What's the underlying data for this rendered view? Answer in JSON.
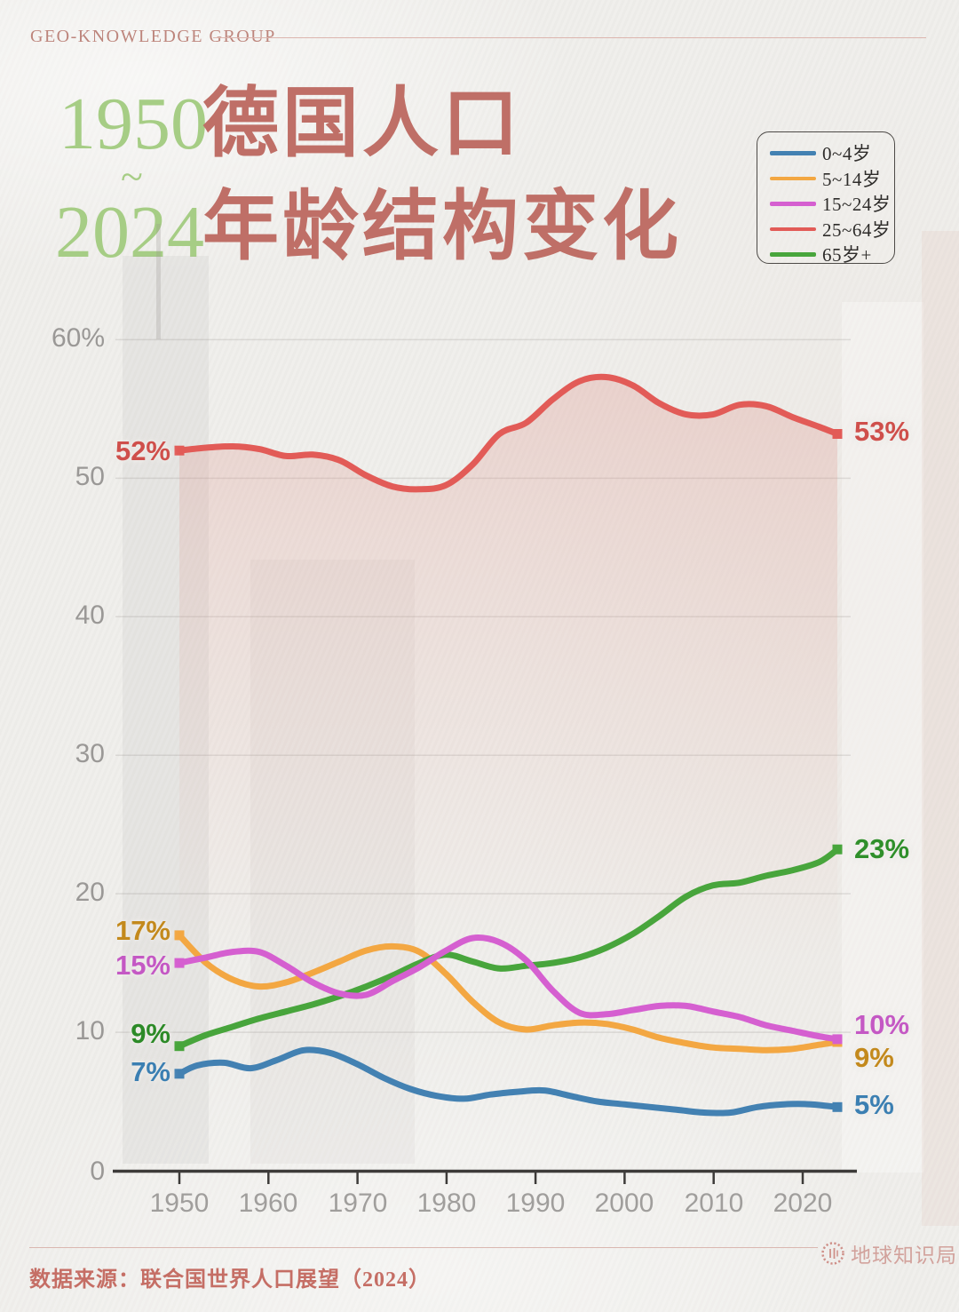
{
  "header": {
    "brand": "GEO-KNOWLEDGE GROUP"
  },
  "title": {
    "year_start": "1950",
    "tilde": "~",
    "year_end": "2024",
    "line1": "德国人口",
    "line2": "年龄结构变化",
    "year_color": "#a6cd85",
    "title_color": "#bf6f67"
  },
  "legend": {
    "items": [
      {
        "label": "0~4岁",
        "color": "#4381b2"
      },
      {
        "label": "5~14岁",
        "color": "#f3a742"
      },
      {
        "label": "15~24岁",
        "color": "#d55fd0"
      },
      {
        "label": "25~64岁",
        "color": "#e25b57"
      },
      {
        "label": "65岁+",
        "color": "#48a53c"
      }
    ]
  },
  "chart_data": {
    "type": "line",
    "title": "德国人口年龄结构变化 1950~2024",
    "xlabel": "",
    "ylabel": "",
    "xlim": [
      1950,
      2024
    ],
    "ylim": [
      0,
      60
    ],
    "grid": true,
    "legend_position": "top-right",
    "x_ticks": [
      "1950",
      "1960",
      "1970",
      "1980",
      "1990",
      "2000",
      "2010",
      "2020"
    ],
    "y_ticks": [
      "0",
      "10",
      "20",
      "30",
      "40",
      "50",
      "60%"
    ],
    "series": [
      {
        "key": "0-4",
        "name": "0~4岁",
        "color": "#4381b2",
        "area_fill": false,
        "points": [
          [
            1950,
            7.0
          ],
          [
            1952,
            7.6
          ],
          [
            1955,
            7.8
          ],
          [
            1958,
            7.4
          ],
          [
            1961,
            8.0
          ],
          [
            1964,
            8.7
          ],
          [
            1967,
            8.5
          ],
          [
            1970,
            7.7
          ],
          [
            1973,
            6.7
          ],
          [
            1976,
            5.9
          ],
          [
            1979,
            5.4
          ],
          [
            1982,
            5.2
          ],
          [
            1985,
            5.5
          ],
          [
            1988,
            5.7
          ],
          [
            1991,
            5.8
          ],
          [
            1994,
            5.4
          ],
          [
            1997,
            5.0
          ],
          [
            2000,
            4.8
          ],
          [
            2003,
            4.6
          ],
          [
            2006,
            4.4
          ],
          [
            2009,
            4.2
          ],
          [
            2012,
            4.2
          ],
          [
            2015,
            4.6
          ],
          [
            2018,
            4.8
          ],
          [
            2021,
            4.8
          ],
          [
            2024,
            4.6
          ]
        ]
      },
      {
        "key": "5-14",
        "name": "5~14岁",
        "color": "#f3a742",
        "area_fill": false,
        "points": [
          [
            1950,
            17.0
          ],
          [
            1953,
            15.0
          ],
          [
            1956,
            13.8
          ],
          [
            1959,
            13.3
          ],
          [
            1962,
            13.6
          ],
          [
            1965,
            14.3
          ],
          [
            1968,
            15.1
          ],
          [
            1971,
            15.9
          ],
          [
            1974,
            16.2
          ],
          [
            1977,
            15.8
          ],
          [
            1980,
            14.2
          ],
          [
            1983,
            12.2
          ],
          [
            1986,
            10.7
          ],
          [
            1989,
            10.2
          ],
          [
            1992,
            10.5
          ],
          [
            1995,
            10.7
          ],
          [
            1998,
            10.6
          ],
          [
            2001,
            10.2
          ],
          [
            2004,
            9.6
          ],
          [
            2007,
            9.2
          ],
          [
            2010,
            8.9
          ],
          [
            2013,
            8.8
          ],
          [
            2016,
            8.7
          ],
          [
            2019,
            8.8
          ],
          [
            2022,
            9.1
          ],
          [
            2024,
            9.3
          ]
        ]
      },
      {
        "key": "65plus",
        "name": "65岁+",
        "color": "#48a53c",
        "area_fill": false,
        "points": [
          [
            1950,
            9.0
          ],
          [
            1953,
            9.8
          ],
          [
            1956,
            10.4
          ],
          [
            1959,
            11.0
          ],
          [
            1962,
            11.5
          ],
          [
            1965,
            12.0
          ],
          [
            1968,
            12.6
          ],
          [
            1971,
            13.3
          ],
          [
            1974,
            14.1
          ],
          [
            1977,
            15.0
          ],
          [
            1980,
            15.6
          ],
          [
            1983,
            15.1
          ],
          [
            1986,
            14.6
          ],
          [
            1989,
            14.8
          ],
          [
            1992,
            15.0
          ],
          [
            1995,
            15.4
          ],
          [
            1998,
            16.1
          ],
          [
            2001,
            17.1
          ],
          [
            2004,
            18.4
          ],
          [
            2007,
            19.8
          ],
          [
            2010,
            20.6
          ],
          [
            2013,
            20.8
          ],
          [
            2016,
            21.3
          ],
          [
            2019,
            21.7
          ],
          [
            2022,
            22.3
          ],
          [
            2024,
            23.2
          ]
        ]
      },
      {
        "key": "15-24",
        "name": "15~24岁",
        "color": "#d55fd0",
        "area_fill": false,
        "points": [
          [
            1950,
            15.0
          ],
          [
            1953,
            15.4
          ],
          [
            1956,
            15.8
          ],
          [
            1959,
            15.8
          ],
          [
            1962,
            14.8
          ],
          [
            1965,
            13.6
          ],
          [
            1968,
            12.8
          ],
          [
            1971,
            12.7
          ],
          [
            1974,
            13.7
          ],
          [
            1977,
            14.7
          ],
          [
            1980,
            15.9
          ],
          [
            1983,
            16.8
          ],
          [
            1986,
            16.5
          ],
          [
            1989,
            15.2
          ],
          [
            1992,
            13.0
          ],
          [
            1995,
            11.4
          ],
          [
            1998,
            11.3
          ],
          [
            2001,
            11.6
          ],
          [
            2004,
            11.9
          ],
          [
            2007,
            11.9
          ],
          [
            2010,
            11.5
          ],
          [
            2013,
            11.1
          ],
          [
            2016,
            10.5
          ],
          [
            2019,
            10.1
          ],
          [
            2022,
            9.7
          ],
          [
            2024,
            9.5
          ]
        ]
      },
      {
        "key": "25-64",
        "name": "25~64岁",
        "color": "#e25b57",
        "area_fill": true,
        "points": [
          [
            1950,
            52.0
          ],
          [
            1953,
            52.2
          ],
          [
            1956,
            52.3
          ],
          [
            1959,
            52.1
          ],
          [
            1962,
            51.6
          ],
          [
            1965,
            51.7
          ],
          [
            1968,
            51.3
          ],
          [
            1971,
            50.2
          ],
          [
            1974,
            49.4
          ],
          [
            1977,
            49.2
          ],
          [
            1980,
            49.5
          ],
          [
            1983,
            51.0
          ],
          [
            1986,
            53.2
          ],
          [
            1989,
            54.0
          ],
          [
            1992,
            55.7
          ],
          [
            1995,
            57.0
          ],
          [
            1998,
            57.3
          ],
          [
            2001,
            56.7
          ],
          [
            2004,
            55.4
          ],
          [
            2007,
            54.6
          ],
          [
            2010,
            54.6
          ],
          [
            2013,
            55.3
          ],
          [
            2016,
            55.2
          ],
          [
            2019,
            54.4
          ],
          [
            2022,
            53.7
          ],
          [
            2024,
            53.2
          ]
        ]
      }
    ]
  },
  "annotations": {
    "left": [
      {
        "text": "52%",
        "color": "#cf4f4b"
      },
      {
        "text": "17%",
        "color": "#c3891c"
      },
      {
        "text": "15%",
        "color": "#c458c4"
      },
      {
        "text": "9%",
        "color": "#2c8a27"
      },
      {
        "text": "7%",
        "color": "#3b7fb2"
      }
    ],
    "right": [
      {
        "text": "53%",
        "color": "#cf4f4b"
      },
      {
        "text": "23%",
        "color": "#2f8f2a"
      },
      {
        "text": "10%",
        "color": "#c458c4"
      },
      {
        "text": "9%",
        "color": "#c3891c"
      },
      {
        "text": "5%",
        "color": "#3b7fb2"
      }
    ]
  },
  "footer": {
    "source": "数据来源：联合国世界人口展望（2024）",
    "watermark": "地球知识局"
  }
}
